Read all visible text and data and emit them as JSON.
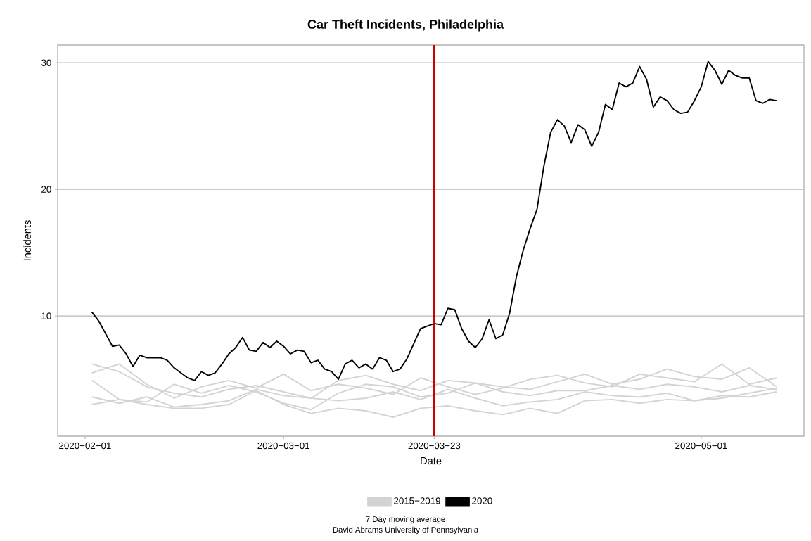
{
  "chart_data": {
    "type": "line",
    "title": "Car Theft Incidents, Philadelphia",
    "xlabel": "Date",
    "ylabel": "Incidents",
    "annotations": [
      "7 Day moving average",
      "David Abrams University of Pennsylvania"
    ],
    "x": [
      "2020-02-02",
      "2020-02-06",
      "2020-02-10",
      "2020-02-14",
      "2020-02-18",
      "2020-02-22",
      "2020-02-26",
      "2020-03-01",
      "2020-03-05",
      "2020-03-09",
      "2020-03-13",
      "2020-03-17",
      "2020-03-21",
      "2020-03-25",
      "2020-03-29",
      "2020-04-02",
      "2020-04-06",
      "2020-04-10",
      "2020-04-14",
      "2020-04-18",
      "2020-04-22",
      "2020-04-26",
      "2020-04-30",
      "2020-05-04",
      "2020-05-08",
      "2020-05-12"
    ],
    "series": [
      {
        "name": "2015−2019",
        "color": "#d3d3d3",
        "values": [
          6.2,
          5.6,
          4.4,
          3.9,
          3.6,
          4.2,
          4.5,
          4.0,
          3.5,
          4.9,
          5.3,
          4.6,
          4.1,
          4.9,
          4.7,
          4.4,
          4.2,
          4.8,
          5.4,
          4.6,
          5.0,
          5.8,
          5.2,
          5.0,
          5.9,
          4.4
        ]
      },
      {
        "color": "#d3d3d3",
        "values": [
          5.5,
          6.2,
          4.6,
          3.5,
          4.4,
          4.9,
          4.3,
          5.4,
          4.1,
          4.6,
          4.3,
          3.8,
          5.1,
          4.4,
          3.8,
          4.3,
          5.0,
          5.3,
          4.7,
          4.4,
          5.4,
          5.1,
          4.8,
          6.2,
          4.6,
          5.1
        ]
      },
      {
        "color": "#d3d3d3",
        "values": [
          4.9,
          3.4,
          3.2,
          4.6,
          3.9,
          4.5,
          4.0,
          3.1,
          2.6,
          3.9,
          4.6,
          4.4,
          3.6,
          3.9,
          4.7,
          4.0,
          3.7,
          4.1,
          4.1,
          4.5,
          4.2,
          4.6,
          4.4,
          4.0,
          4.5,
          4.2
        ]
      },
      {
        "color": "#d3d3d3",
        "values": [
          3.6,
          3.1,
          3.6,
          2.8,
          3.0,
          3.3,
          4.2,
          3.7,
          3.5,
          3.3,
          3.5,
          4.0,
          3.4,
          4.2,
          3.5,
          2.9,
          3.2,
          3.4,
          4.0,
          3.7,
          3.6,
          3.9,
          3.3,
          3.7,
          3.6,
          4.0
        ]
      },
      {
        "color": "#d3d3d3",
        "values": [
          3.0,
          3.4,
          3.0,
          2.7,
          2.7,
          3.0,
          4.1,
          3.0,
          2.3,
          2.7,
          2.5,
          2.0,
          2.7,
          2.9,
          2.5,
          2.2,
          2.7,
          2.3,
          3.3,
          3.4,
          3.1,
          3.4,
          3.3,
          3.5,
          3.9,
          4.3
        ]
      },
      {
        "name": "2020",
        "color": "#000000",
        "x": [
          "2020-02-02",
          "2020-02-03",
          "2020-02-04",
          "2020-02-05",
          "2020-02-06",
          "2020-02-07",
          "2020-02-08",
          "2020-02-09",
          "2020-02-10",
          "2020-02-11",
          "2020-02-12",
          "2020-02-13",
          "2020-02-14",
          "2020-02-15",
          "2020-02-16",
          "2020-02-17",
          "2020-02-18",
          "2020-02-19",
          "2020-02-20",
          "2020-02-21",
          "2020-02-22",
          "2020-02-23",
          "2020-02-24",
          "2020-02-25",
          "2020-02-26",
          "2020-02-27",
          "2020-02-28",
          "2020-02-29",
          "2020-03-01",
          "2020-03-02",
          "2020-03-03",
          "2020-03-04",
          "2020-03-05",
          "2020-03-06",
          "2020-03-07",
          "2020-03-08",
          "2020-03-09",
          "2020-03-10",
          "2020-03-11",
          "2020-03-12",
          "2020-03-13",
          "2020-03-14",
          "2020-03-15",
          "2020-03-16",
          "2020-03-17",
          "2020-03-18",
          "2020-03-19",
          "2020-03-20",
          "2020-03-21",
          "2020-03-22",
          "2020-03-23",
          "2020-03-24",
          "2020-03-25",
          "2020-03-26",
          "2020-03-27",
          "2020-03-28",
          "2020-03-29",
          "2020-03-30",
          "2020-03-31",
          "2020-04-01",
          "2020-04-02",
          "2020-04-03",
          "2020-04-04",
          "2020-04-05",
          "2020-04-06",
          "2020-04-07",
          "2020-04-08",
          "2020-04-09",
          "2020-04-10",
          "2020-04-11",
          "2020-04-12",
          "2020-04-13",
          "2020-04-14",
          "2020-04-15",
          "2020-04-16",
          "2020-04-17",
          "2020-04-18",
          "2020-04-19",
          "2020-04-20",
          "2020-04-21",
          "2020-04-22",
          "2020-04-23",
          "2020-04-24",
          "2020-04-25",
          "2020-04-26",
          "2020-04-27",
          "2020-04-28",
          "2020-04-29",
          "2020-04-30",
          "2020-05-01",
          "2020-05-02",
          "2020-05-03",
          "2020-05-04",
          "2020-05-05",
          "2020-05-06",
          "2020-05-07",
          "2020-05-08",
          "2020-05-09",
          "2020-05-10",
          "2020-05-11",
          "2020-05-12"
        ],
        "values": [
          10.3,
          9.6,
          8.6,
          7.6,
          7.7,
          7.0,
          6.0,
          6.9,
          6.7,
          6.7,
          6.7,
          6.5,
          5.9,
          5.5,
          5.1,
          4.9,
          5.6,
          5.3,
          5.5,
          6.2,
          7.0,
          7.5,
          8.3,
          7.3,
          7.2,
          7.9,
          7.5,
          8.0,
          7.6,
          7.0,
          7.3,
          7.2,
          6.3,
          6.5,
          5.8,
          5.6,
          5.0,
          6.2,
          6.5,
          5.9,
          6.2,
          5.8,
          6.7,
          6.5,
          5.6,
          5.8,
          6.6,
          7.8,
          9.0,
          9.2,
          9.4,
          9.3,
          10.6,
          10.5,
          9.0,
          8.0,
          7.5,
          8.2,
          9.7,
          8.2,
          8.5,
          10.2,
          13.1,
          15.2,
          16.9,
          18.4,
          21.8,
          24.5,
          25.5,
          25.0,
          23.7,
          25.1,
          24.7,
          23.4,
          24.5,
          26.7,
          26.3,
          28.4,
          28.1,
          28.4,
          29.7,
          28.7,
          26.5,
          27.3,
          27.0,
          26.3,
          26.0,
          26.1,
          27.0,
          28.1,
          30.1,
          29.4,
          28.3,
          29.4,
          29.0,
          28.8,
          28.8,
          27.0,
          26.8,
          27.1,
          27.0
        ]
      }
    ],
    "xlim": [
      "2020-01-28",
      "2020-05-16"
    ],
    "xticks": [
      {
        "value": "2020-02-01",
        "label": "2020−02−01"
      },
      {
        "value": "2020-03-01",
        "label": "2020−03−01"
      },
      {
        "value": "2020-03-23",
        "label": "2020−03−23"
      },
      {
        "value": "2020-05-01",
        "label": "2020−05−01"
      }
    ],
    "ylim": [
      0.5,
      31.4
    ],
    "yticks": [
      10,
      20,
      30
    ],
    "ref_lines": [
      {
        "axis": "x",
        "value": "2020-03-23",
        "color": "#cc0000"
      }
    ],
    "grid": "y",
    "legend": "bottom",
    "line_style": "solid"
  }
}
